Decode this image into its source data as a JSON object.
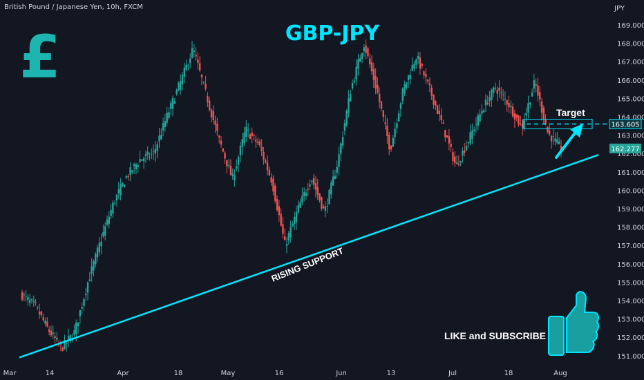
{
  "header": {
    "symbol_line": "British Pound / Japanese Yen, 10h, FXCM",
    "currency": "JPY"
  },
  "overlay": {
    "title": "GBP-JPY",
    "target_label": "Target",
    "support_label": "RISING SUPPORT",
    "cta_label": "LIKE and SUBSCRIBE",
    "pound_icon": "pound-sterling-icon",
    "like_icon": "thumbs-up-icon"
  },
  "colors": {
    "background": "#131722",
    "up_candle": "#26a69a",
    "down_candle": "#ef5350",
    "accent": "#00e5ff",
    "title": "#00e5ff",
    "pound": "#1cb5b0",
    "axis_text": "#d1d4dc",
    "price_badge": "#26a69a",
    "target_badge": "#0e3a44"
  },
  "chart_data": {
    "type": "candlestick",
    "title": "GBP-JPY",
    "xlabel": "",
    "ylabel": "",
    "ylim": [
      150.8,
      169.5
    ],
    "y_ticks": [
      "169.000",
      "168.000",
      "167.000",
      "166.000",
      "165.000",
      "164.000",
      "163.000",
      "162.000",
      "161.000",
      "160.000",
      "159.000",
      "158.000",
      "157.000",
      "156.000",
      "155.000",
      "154.000",
      "153.000",
      "152.000",
      "151.000"
    ],
    "x_ticks": [
      "Mar",
      "14",
      "Apr",
      "18",
      "May",
      "16",
      "Jun",
      "13",
      "Jul",
      "18",
      "Aug"
    ],
    "close_path": [
      {
        "t": "Mar",
        "price": 154.3
      },
      {
        "t": "4 Mar",
        "price": 153.7
      },
      {
        "t": "7 Mar",
        "price": 152.4
      },
      {
        "t": "11 Mar",
        "price": 151.4
      },
      {
        "t": "14 Mar",
        "price": 152.3
      },
      {
        "t": "18 Mar",
        "price": 155.0
      },
      {
        "t": "22 Mar",
        "price": 157.3
      },
      {
        "t": "27 Mar",
        "price": 159.4
      },
      {
        "t": "1 Apr",
        "price": 160.8
      },
      {
        "t": "5 Apr",
        "price": 161.7
      },
      {
        "t": "10 Apr",
        "price": 162.0
      },
      {
        "t": "14 Apr",
        "price": 164.0
      },
      {
        "t": "18 Apr",
        "price": 165.8
      },
      {
        "t": "22 Apr",
        "price": 167.7
      },
      {
        "t": "25 Apr",
        "price": 165.2
      },
      {
        "t": "28 Apr",
        "price": 162.7
      },
      {
        "t": "1 May",
        "price": 160.6
      },
      {
        "t": "5 May",
        "price": 163.3
      },
      {
        "t": "9 May",
        "price": 162.5
      },
      {
        "t": "13 May",
        "price": 160.5
      },
      {
        "t": "16 May",
        "price": 157.0
      },
      {
        "t": "20 May",
        "price": 159.0
      },
      {
        "t": "24 May",
        "price": 160.7
      },
      {
        "t": "29 May",
        "price": 158.8
      },
      {
        "t": "2 Jun",
        "price": 161.5
      },
      {
        "t": "6 Jun",
        "price": 165.5
      },
      {
        "t": "9 Jun",
        "price": 168.0
      },
      {
        "t": "11 Jun",
        "price": 165.4
      },
      {
        "t": "14 Jun",
        "price": 162.2
      },
      {
        "t": "18 Jun",
        "price": 165.5
      },
      {
        "t": "23 Jun",
        "price": 167.3
      },
      {
        "t": "27 Jun",
        "price": 165.5
      },
      {
        "t": "1 Jul",
        "price": 163.5
      },
      {
        "t": "5 Jul",
        "price": 161.3
      },
      {
        "t": "8 Jul",
        "price": 162.8
      },
      {
        "t": "12 Jul",
        "price": 164.4
      },
      {
        "t": "16 Jul",
        "price": 165.6
      },
      {
        "t": "20 Jul",
        "price": 164.7
      },
      {
        "t": "23 Jul",
        "price": 163.4
      },
      {
        "t": "26 Jul",
        "price": 165.9
      },
      {
        "t": "28 Jul",
        "price": 163.1
      },
      {
        "t": "31 Jul",
        "price": 162.3
      }
    ],
    "current_price": 162.277,
    "current_price_label": "162.277",
    "target_price": 163.605,
    "target_price_label": "163.605",
    "support_line": {
      "from": {
        "t": "Mar",
        "price": 150.9
      },
      "to": {
        "t": "Aug",
        "price": 162.3
      }
    },
    "grid": false,
    "legend": "none"
  }
}
